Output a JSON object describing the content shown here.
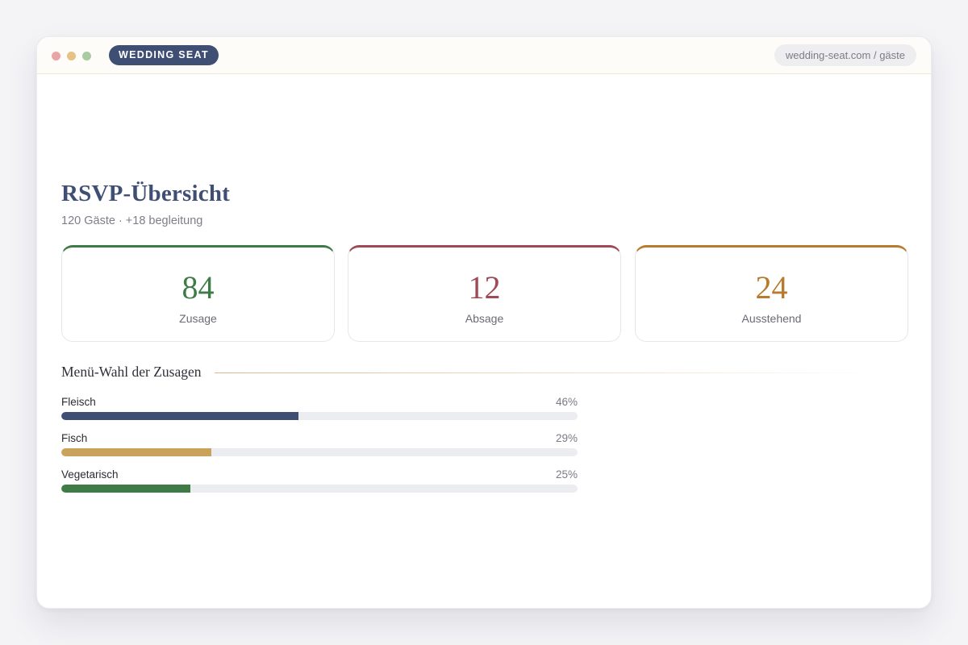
{
  "app": {
    "brand": "WEDDING SEAT",
    "url": "wedding-seat.com / gäste"
  },
  "colors": {
    "navy": "#3f4f73",
    "green": "#3e7b46",
    "rose": "#a04a57",
    "gold": "#b87a2d",
    "bar_gold": "#c9a35c"
  },
  "page": {
    "title": "RSVP-Übersicht",
    "subtitle": "120 Gäste · +18 begleitung"
  },
  "stats": [
    {
      "value": "84",
      "label": "Zusage",
      "color": "#3e7b46"
    },
    {
      "value": "12",
      "label": "Absage",
      "color": "#a04a57"
    },
    {
      "value": "24",
      "label": "Ausstehend",
      "color": "#b87a2d"
    }
  ],
  "menu": {
    "title": "Menü-Wahl der Zusagen",
    "items": [
      {
        "label": "Fleisch",
        "percent_text": "46%",
        "percent": 46,
        "color": "#3f4f73"
      },
      {
        "label": "Fisch",
        "percent_text": "29%",
        "percent": 29,
        "color": "#c9a35c"
      },
      {
        "label": "Vegetarisch",
        "percent_text": "25%",
        "percent": 25,
        "color": "#3e7b46"
      }
    ]
  }
}
